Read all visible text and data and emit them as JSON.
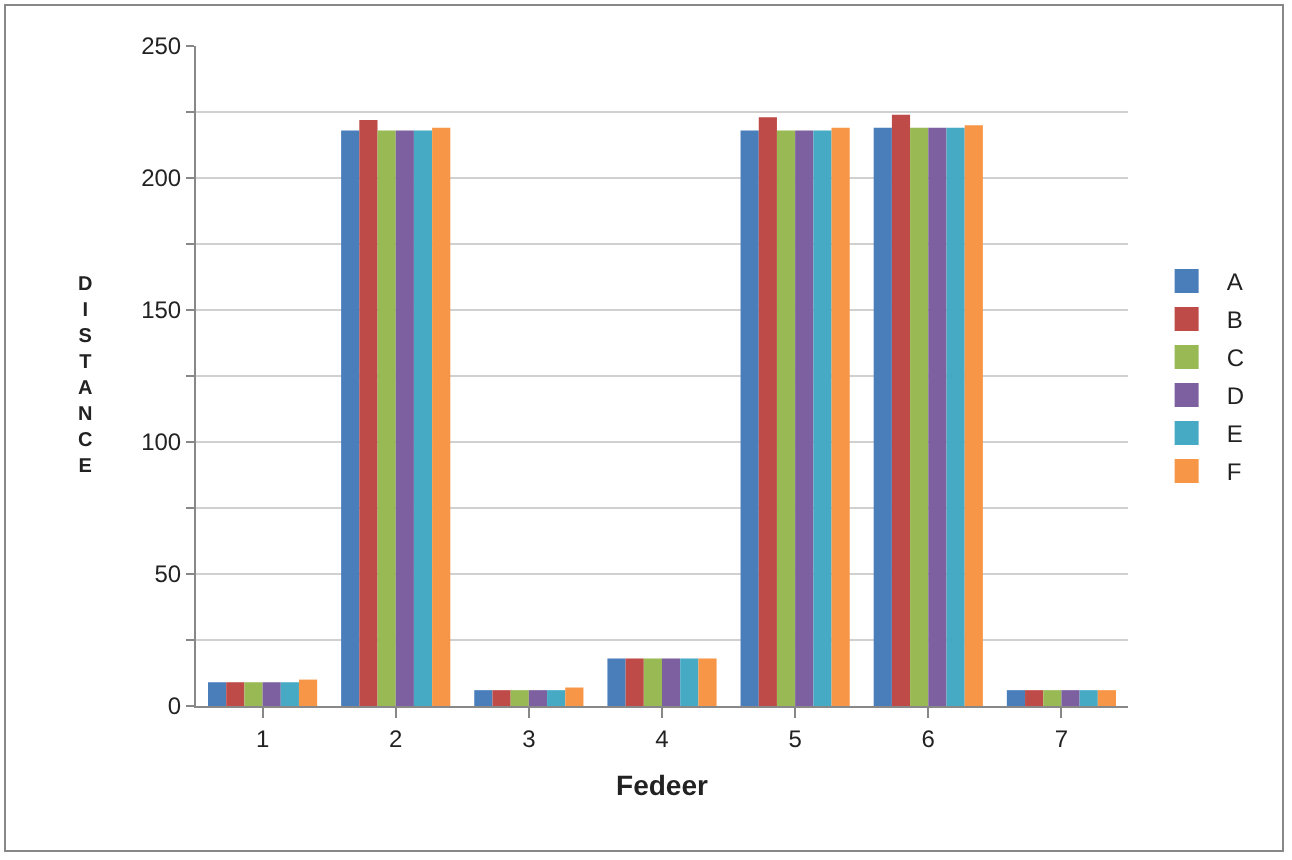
{
  "chart_data": {
    "type": "bar",
    "xlabel": "Fedeer",
    "ylabel": "DISTANCE",
    "categories": [
      "1",
      "2",
      "3",
      "4",
      "5",
      "6",
      "7"
    ],
    "series": [
      {
        "name": "A",
        "color": "#4a7ebb",
        "values": [
          9,
          218,
          6,
          18,
          218,
          219,
          6
        ]
      },
      {
        "name": "B",
        "color": "#be4b48",
        "values": [
          9,
          222,
          6,
          18,
          223,
          224,
          6
        ]
      },
      {
        "name": "C",
        "color": "#98b954",
        "values": [
          9,
          218,
          6,
          18,
          218,
          219,
          6
        ]
      },
      {
        "name": "D",
        "color": "#7d60a0",
        "values": [
          9,
          218,
          6,
          18,
          218,
          219,
          6
        ]
      },
      {
        "name": "E",
        "color": "#46aac5",
        "values": [
          9,
          218,
          6,
          18,
          218,
          219,
          6
        ]
      },
      {
        "name": "F",
        "color": "#f79646",
        "values": [
          10,
          219,
          7,
          18,
          219,
          220,
          6
        ]
      }
    ],
    "ylim": [
      0,
      250
    ],
    "yticks": [
      0,
      {
        "value": 25,
        "label": null
      },
      50,
      {
        "value": 75,
        "label": null
      },
      100,
      {
        "value": 125,
        "label": null
      },
      150,
      {
        "value": 175,
        "label": null
      },
      200,
      {
        "value": 225,
        "label": null
      },
      250
    ],
    "grid": "y",
    "legend": "right"
  }
}
